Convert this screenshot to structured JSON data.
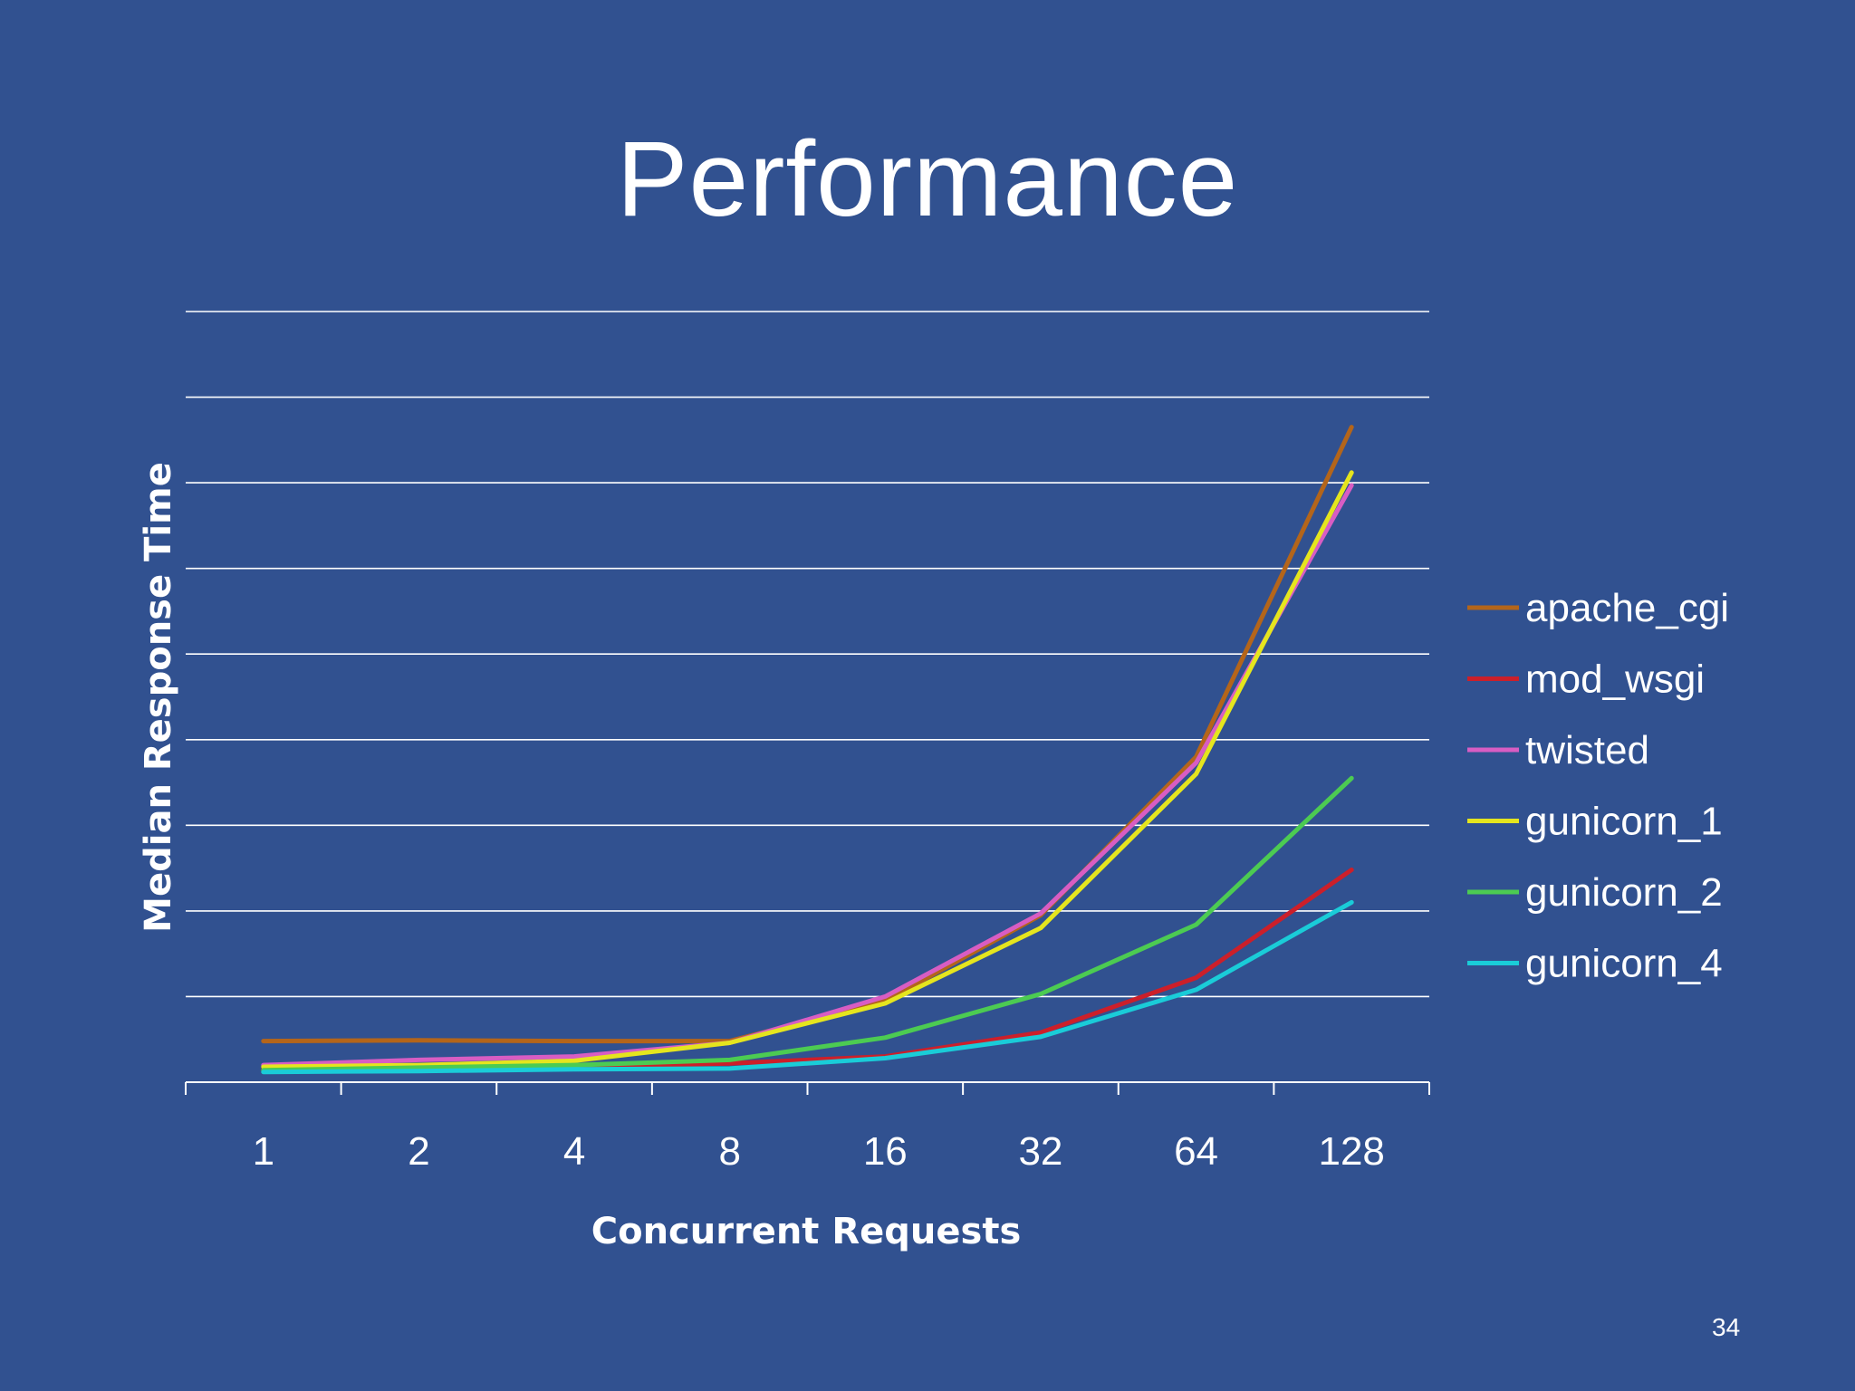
{
  "slide": {
    "title": "Performance",
    "page_number": "34"
  },
  "chart_data": {
    "type": "line",
    "title": "",
    "xlabel": "Concurrent Requests",
    "ylabel": "Median Response Time",
    "x_scale": "log2",
    "categories": [
      "1",
      "2",
      "4",
      "8",
      "16",
      "32",
      "64",
      "128"
    ],
    "ylim": [
      0,
      9
    ],
    "y_tick_labels_shown": false,
    "grid": true,
    "legend_position": "right",
    "series": [
      {
        "name": "apache_cgi",
        "color": "#B4651A",
        "values": [
          0.48,
          0.49,
          0.48,
          0.48,
          0.95,
          1.95,
          3.8,
          7.65
        ]
      },
      {
        "name": "mod_wsgi",
        "color": "#CC1F2A",
        "values": [
          0.15,
          0.17,
          0.18,
          0.22,
          0.3,
          0.58,
          1.22,
          2.48
        ]
      },
      {
        "name": "twisted",
        "color": "#D85DC3",
        "values": [
          0.2,
          0.26,
          0.3,
          0.46,
          1.0,
          1.97,
          3.73,
          6.97
        ]
      },
      {
        "name": "gunicorn_1",
        "color": "#E5E51E",
        "values": [
          0.18,
          0.2,
          0.25,
          0.46,
          0.92,
          1.8,
          3.6,
          7.12
        ]
      },
      {
        "name": "gunicorn_2",
        "color": "#4CCB52",
        "values": [
          0.14,
          0.17,
          0.2,
          0.26,
          0.52,
          1.03,
          1.84,
          3.55
        ]
      },
      {
        "name": "gunicorn_4",
        "color": "#1ACCD8",
        "values": [
          0.12,
          0.13,
          0.15,
          0.16,
          0.28,
          0.53,
          1.08,
          2.1
        ]
      }
    ]
  }
}
